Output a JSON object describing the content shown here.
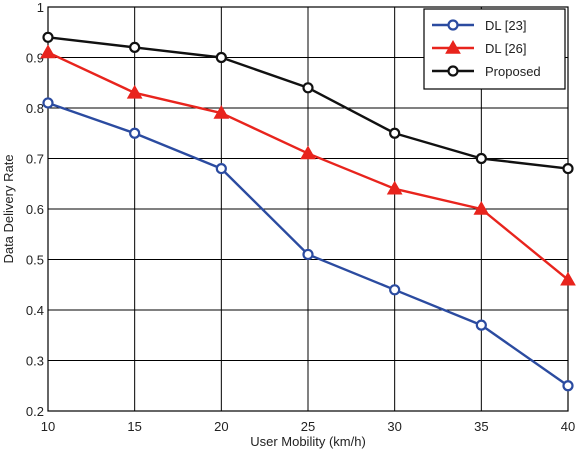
{
  "chart_data": {
    "type": "line",
    "title": "",
    "xlabel": "User Mobility (km/h)",
    "ylabel": "Data Delivery Rate",
    "x": [
      10,
      15,
      20,
      25,
      30,
      35,
      40
    ],
    "xlim": [
      10,
      40
    ],
    "ylim": [
      0.2,
      1
    ],
    "xticks": [
      10,
      15,
      20,
      25,
      30,
      35,
      40
    ],
    "xtick_labels": [
      "10",
      "15",
      "20",
      "25",
      "30",
      "35",
      "40"
    ],
    "yticks": [
      0.2,
      0.3,
      0.4,
      0.5,
      0.6,
      0.7,
      0.8,
      0.9,
      1
    ],
    "ytick_labels": [
      "0.2",
      "0.3",
      "0.4",
      "0.5",
      "0.6",
      "0.7",
      "0.8",
      "0.9",
      "1"
    ],
    "grid": true,
    "legend_position": "top-right",
    "series": [
      {
        "name": "DL [23]",
        "color": "#2b4ba0",
        "marker": "circle",
        "values": [
          0.81,
          0.75,
          0.68,
          0.51,
          0.44,
          0.37,
          0.25
        ]
      },
      {
        "name": "DL [26]",
        "color": "#e8241d",
        "marker": "triangle",
        "values": [
          0.91,
          0.83,
          0.79,
          0.71,
          0.64,
          0.6,
          0.46
        ]
      },
      {
        "name": "Proposed",
        "color": "#111111",
        "marker": "circle",
        "values": [
          0.94,
          0.92,
          0.9,
          0.84,
          0.75,
          0.7,
          0.68
        ]
      }
    ]
  }
}
